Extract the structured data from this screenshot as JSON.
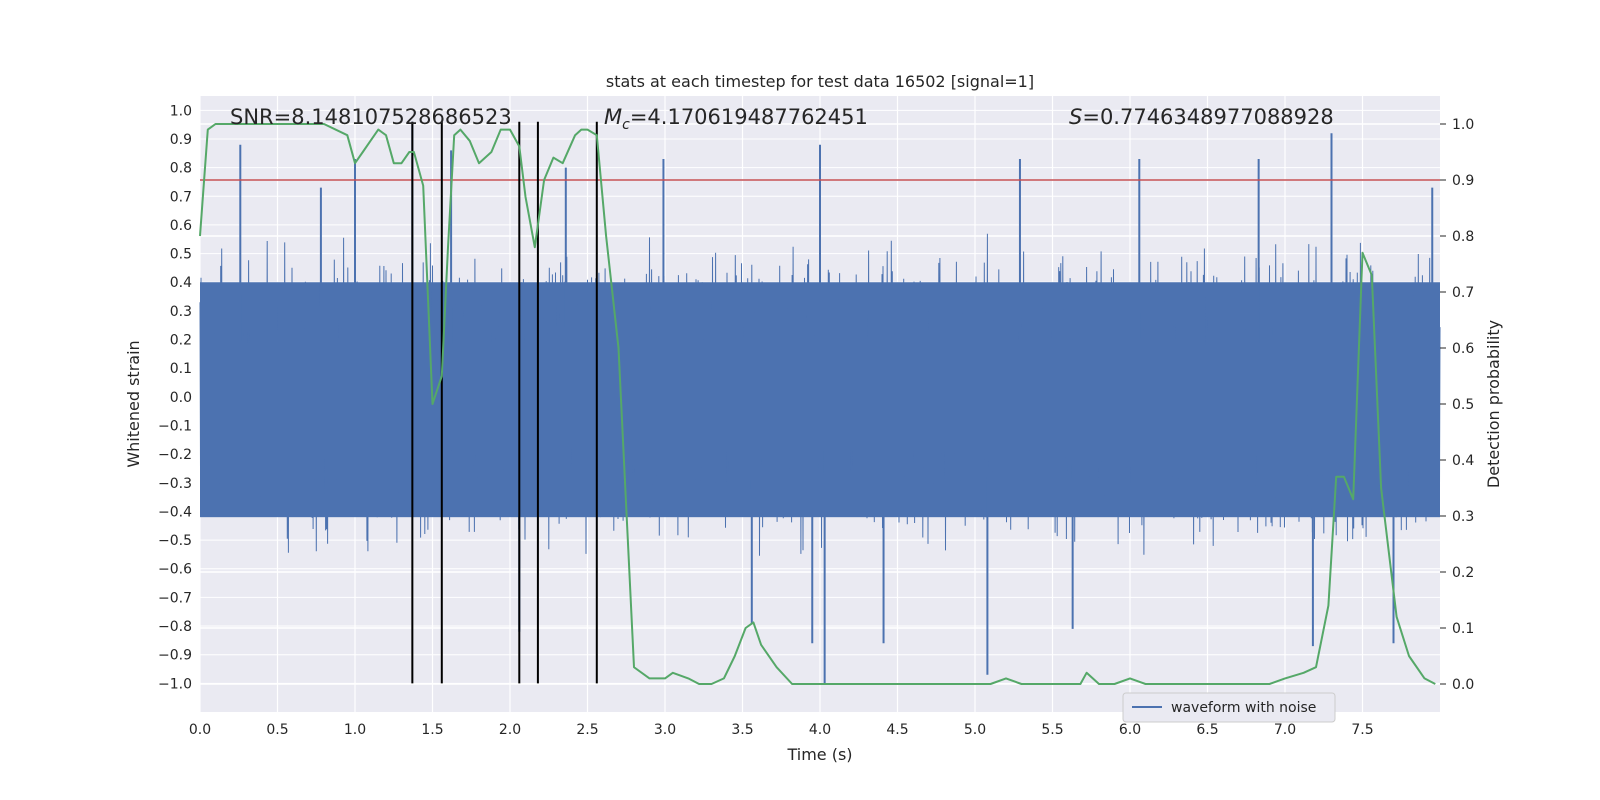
{
  "chart_data": {
    "type": "line",
    "title": "stats at each timestep for test data 16502 [signal=1]",
    "xlabel": "Time (s)",
    "ylabel_left": "Whitened strain",
    "ylabel_right": "Detection probability",
    "xlim": [
      0.0,
      8.0
    ],
    "ylim_left": [
      -1.1,
      1.05
    ],
    "ylim_right": [
      -0.05,
      1.05
    ],
    "grid": true,
    "x_ticks": [
      "0.0",
      "0.5",
      "1.0",
      "1.5",
      "2.0",
      "2.5",
      "3.0",
      "3.5",
      "4.0",
      "4.5",
      "5.0",
      "5.5",
      "6.0",
      "6.5",
      "7.0",
      "7.5"
    ],
    "x_tick_values": [
      0.0,
      0.5,
      1.0,
      1.5,
      2.0,
      2.5,
      3.0,
      3.5,
      4.0,
      4.5,
      5.0,
      5.5,
      6.0,
      6.5,
      7.0,
      7.5
    ],
    "y_left_ticks": [
      "1.0",
      "0.9",
      "0.8",
      "0.7",
      "0.6",
      "0.5",
      "0.4",
      "0.3",
      "0.2",
      "0.1",
      "0.0",
      "−0.1",
      "−0.2",
      "−0.3",
      "−0.4",
      "−0.5",
      "−0.6",
      "−0.7",
      "−0.8",
      "−0.9",
      "−1.0"
    ],
    "y_left_tick_values": [
      1.0,
      0.9,
      0.8,
      0.7,
      0.6,
      0.5,
      0.4,
      0.3,
      0.2,
      0.1,
      0.0,
      -0.1,
      -0.2,
      -0.3,
      -0.4,
      -0.5,
      -0.6,
      -0.7,
      -0.8,
      -0.9,
      -1.0
    ],
    "y_right_ticks": [
      "1.0",
      "0.9",
      "0.8",
      "0.7",
      "0.6",
      "0.5",
      "0.4",
      "0.3",
      "0.2",
      "0.1",
      "0.0"
    ],
    "y_right_tick_values": [
      1.0,
      0.9,
      0.8,
      0.7,
      0.6,
      0.5,
      0.4,
      0.3,
      0.2,
      0.1,
      0.0
    ],
    "annotations": {
      "snr": "SNR=8.148107528686523",
      "mc_symbol": "M",
      "mc_sub": "c",
      "mc_value": "=4.170619487762451",
      "s_symbol": "S",
      "s_value": "=0.7746348977088928"
    },
    "legend": {
      "label": "waveform with noise",
      "position": "lower-right"
    },
    "threshold_line": {
      "value": 0.9,
      "axis": "right",
      "color": "#c44e52"
    },
    "event_lines": {
      "x": [
        1.37,
        1.56,
        2.06,
        2.18,
        2.56
      ],
      "y_range": [
        -1.0,
        0.96
      ],
      "color": "#000000"
    },
    "waveform": {
      "name": "waveform with noise",
      "color": "#4c72b0",
      "x_range": [
        0.0,
        8.0
      ],
      "typical_envelope": [
        -0.42,
        0.4
      ],
      "spikes": [
        {
          "x": 0.26,
          "y": 0.88
        },
        {
          "x": 0.78,
          "y": 0.73
        },
        {
          "x": 1.0,
          "y": 0.83
        },
        {
          "x": 1.37,
          "y": 0.96
        },
        {
          "x": 1.62,
          "y": 0.86
        },
        {
          "x": 2.06,
          "y": -0.82
        },
        {
          "x": 2.36,
          "y": 0.8
        },
        {
          "x": 2.99,
          "y": 0.83
        },
        {
          "x": 3.56,
          "y": -0.79
        },
        {
          "x": 3.95,
          "y": -0.86
        },
        {
          "x": 4.0,
          "y": 0.88
        },
        {
          "x": 4.03,
          "y": -1.0
        },
        {
          "x": 4.41,
          "y": -0.86
        },
        {
          "x": 5.08,
          "y": -0.97
        },
        {
          "x": 5.29,
          "y": 0.83
        },
        {
          "x": 5.63,
          "y": -0.81
        },
        {
          "x": 6.06,
          "y": 0.83
        },
        {
          "x": 6.83,
          "y": 0.83
        },
        {
          "x": 7.18,
          "y": -0.87
        },
        {
          "x": 7.3,
          "y": 0.92
        },
        {
          "x": 7.7,
          "y": -0.86
        },
        {
          "x": 7.95,
          "y": 0.73
        }
      ]
    },
    "detection_probability": {
      "name": "detection probability",
      "color": "#55a868",
      "axis": "right",
      "x": [
        0.0,
        0.05,
        0.1,
        0.2,
        0.4,
        0.6,
        0.8,
        0.95,
        1.0,
        1.05,
        1.1,
        1.15,
        1.2,
        1.25,
        1.3,
        1.35,
        1.38,
        1.44,
        1.5,
        1.56,
        1.6,
        1.64,
        1.68,
        1.74,
        1.8,
        1.88,
        1.94,
        2.0,
        2.06,
        2.1,
        2.16,
        2.22,
        2.28,
        2.34,
        2.42,
        2.46,
        2.5,
        2.56,
        2.62,
        2.7,
        2.8,
        2.9,
        3.0,
        3.05,
        3.15,
        3.22,
        3.3,
        3.38,
        3.45,
        3.52,
        3.57,
        3.62,
        3.72,
        3.82,
        3.92,
        4.1,
        4.4,
        4.8,
        5.1,
        5.2,
        5.3,
        5.5,
        5.6,
        5.68,
        5.72,
        5.8,
        5.9,
        6.0,
        6.1,
        6.5,
        6.9,
        7.0,
        7.12,
        7.2,
        7.28,
        7.33,
        7.38,
        7.44,
        7.5,
        7.56,
        7.62,
        7.72,
        7.8,
        7.9,
        7.97
      ],
      "values": [
        0.8,
        0.99,
        1.0,
        1.0,
        1.0,
        1.0,
        1.0,
        0.98,
        0.93,
        0.95,
        0.97,
        0.99,
        0.98,
        0.93,
        0.93,
        0.95,
        0.95,
        0.89,
        0.5,
        0.55,
        0.78,
        0.98,
        0.99,
        0.97,
        0.93,
        0.95,
        0.99,
        0.99,
        0.96,
        0.87,
        0.78,
        0.9,
        0.94,
        0.93,
        0.98,
        0.99,
        0.99,
        0.98,
        0.8,
        0.6,
        0.03,
        0.01,
        0.01,
        0.02,
        0.01,
        0.0,
        0.0,
        0.01,
        0.05,
        0.1,
        0.11,
        0.07,
        0.03,
        0.0,
        0.0,
        0.0,
        0.0,
        0.0,
        0.0,
        0.01,
        0.0,
        0.0,
        0.0,
        0.0,
        0.02,
        0.0,
        0.0,
        0.01,
        0.0,
        0.0,
        0.0,
        0.01,
        0.02,
        0.03,
        0.14,
        0.37,
        0.37,
        0.33,
        0.77,
        0.73,
        0.35,
        0.12,
        0.05,
        0.01,
        0.0
      ]
    }
  }
}
